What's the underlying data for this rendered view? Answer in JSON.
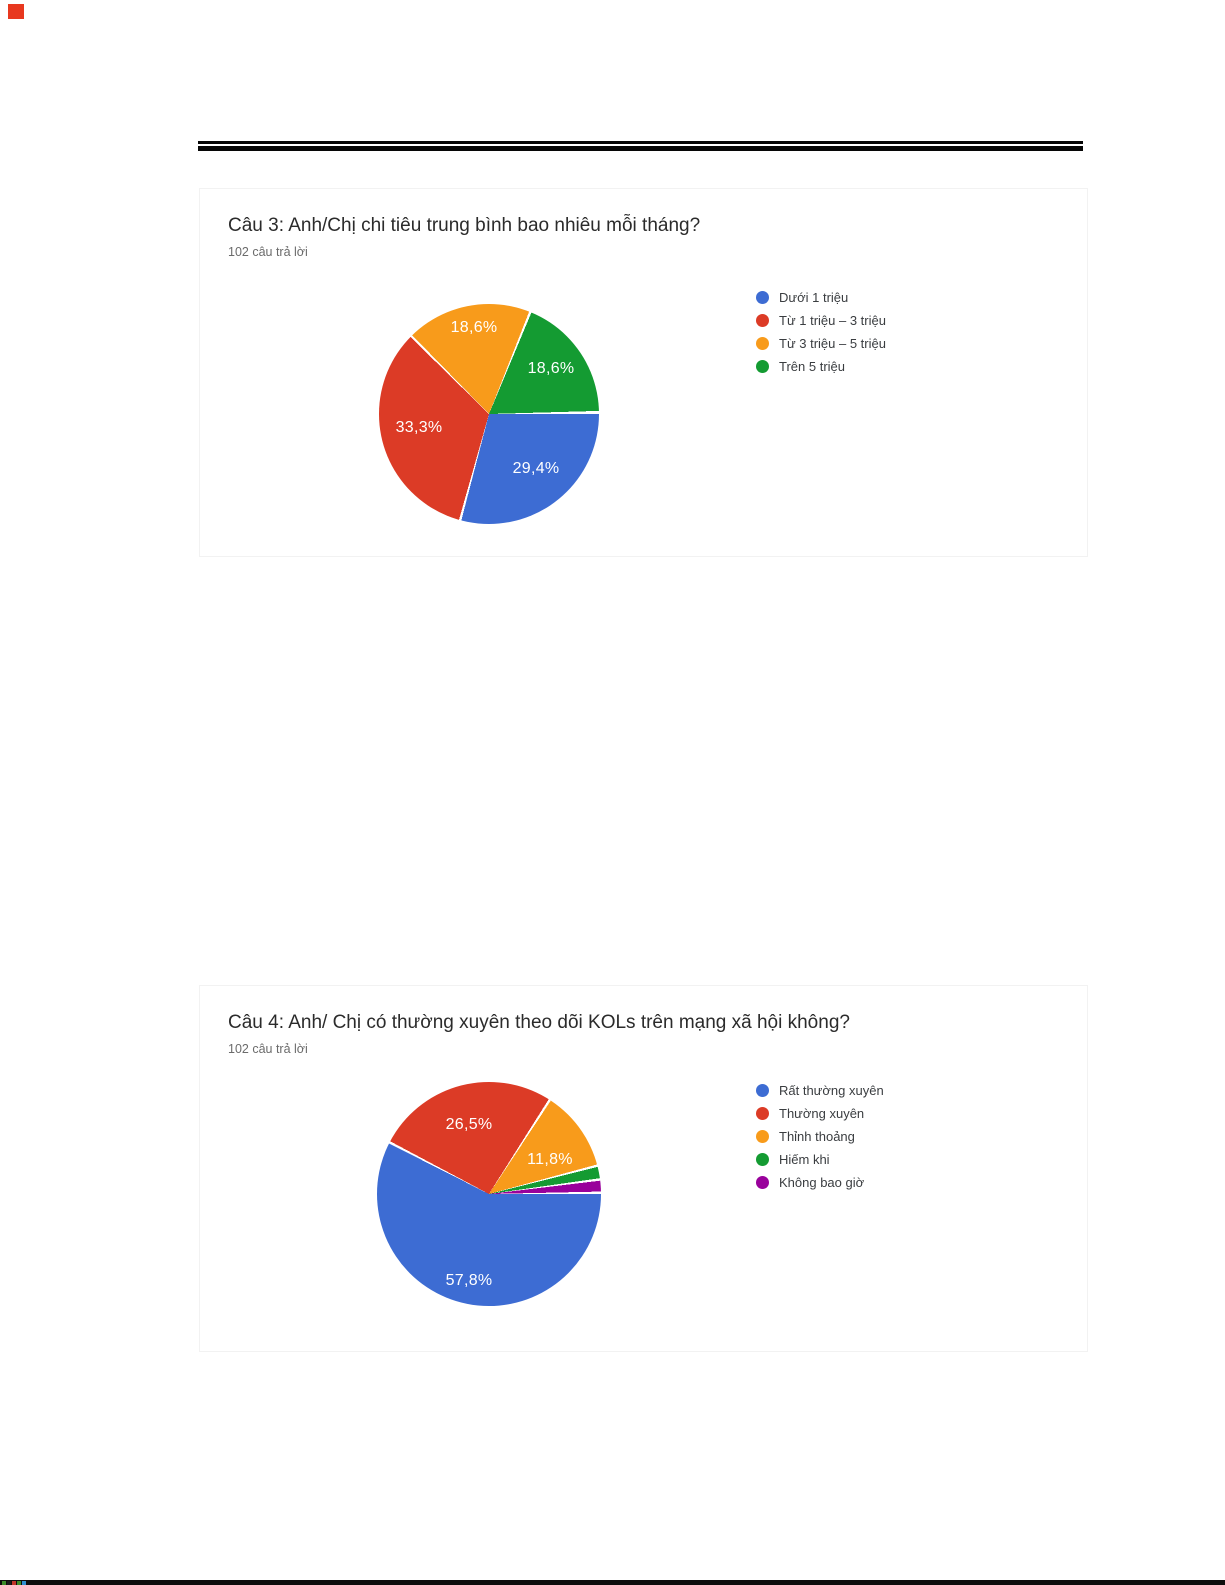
{
  "page": {
    "background": "#ffffff",
    "rule_color": "#060606",
    "artifacts": {
      "top_left_square_color": "#e8381f",
      "bottom_bar_color": "#0d0d0d",
      "bottom_left_pixel_colors": [
        "#3c8a28",
        "#1a1a1a",
        "#c03428",
        "#3c8a28",
        "#2f8fd0"
      ]
    }
  },
  "chart_data": [
    {
      "type": "pie",
      "title": "Câu 3: Anh/Chị chi tiêu trung bình bao nhiêu mỗi tháng?",
      "subtitle": "102 câu trả lời",
      "categories": [
        "Dưới 1 triệu",
        "Từ 1 triệu – 3 triệu",
        "Từ 3 triệu – 5 triệu",
        "Trên 5 triệu"
      ],
      "values": [
        29.4,
        33.3,
        18.6,
        18.6
      ],
      "slice_labels": [
        "29,4%",
        "33,3%",
        "18,6%",
        "18,6%"
      ],
      "colors": [
        "#3d6cd3",
        "#dc3b26",
        "#f89b1b",
        "#149b32"
      ],
      "start_angle_deg": 90,
      "direction": "clockwise",
      "legend_position": "right",
      "grid": false
    },
    {
      "type": "pie",
      "title": "Câu 4: Anh/ Chị có thường xuyên theo dõi KOLs trên mạng xã hội không?",
      "subtitle": "102 câu trả lời",
      "categories": [
        "Rất thường xuyên",
        "Thường xuyên",
        "Thỉnh thoảng",
        "Hiếm khi",
        "Không bao giờ"
      ],
      "values": [
        57.8,
        26.5,
        11.8,
        2.0,
        1.9
      ],
      "slice_labels": [
        "57,8%",
        "26,5%",
        "11,8%",
        "",
        ""
      ],
      "colors": [
        "#3d6cd3",
        "#dc3b26",
        "#f89b1b",
        "#149b32",
        "#99019b"
      ],
      "start_angle_deg": 90,
      "direction": "clockwise",
      "legend_position": "right",
      "grid": false
    }
  ]
}
